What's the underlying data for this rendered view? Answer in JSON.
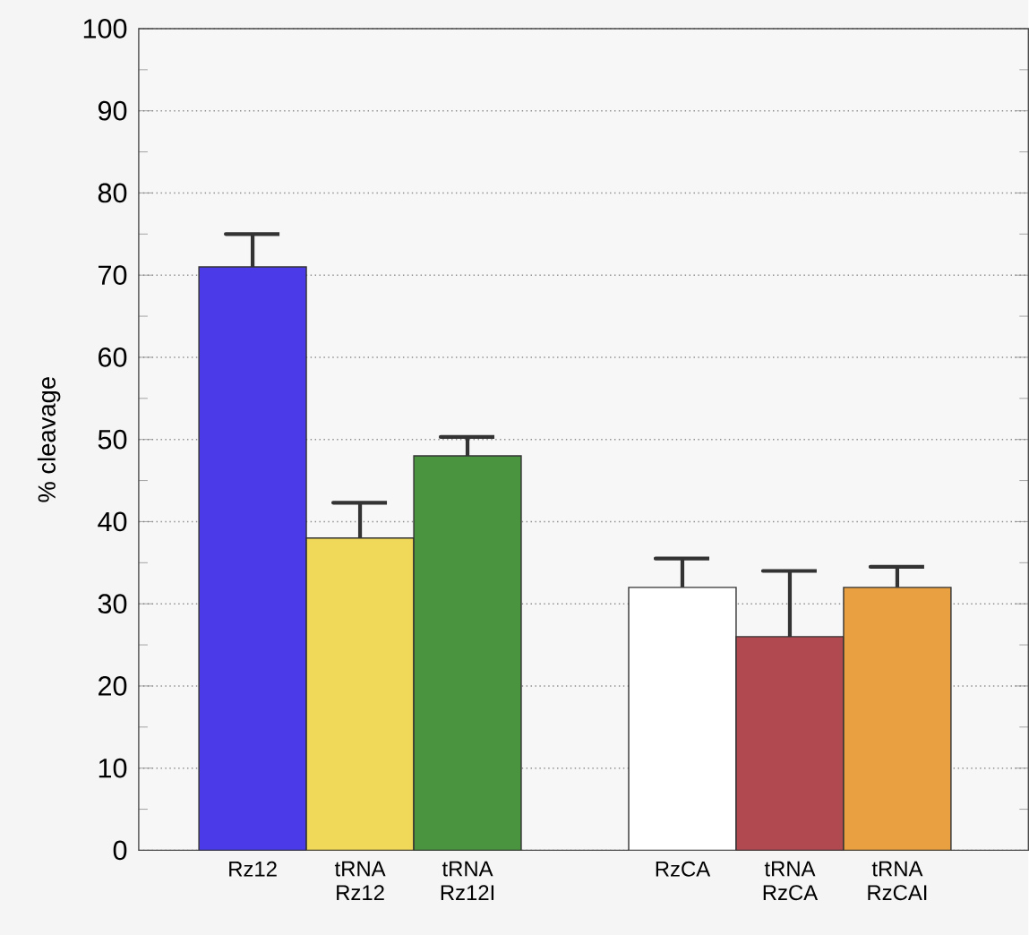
{
  "chart_data": {
    "type": "bar",
    "ylabel": "% cleavage",
    "categories": [
      "Rz12",
      "tRNA Rz12",
      "tRNA Rz12I",
      null,
      "RzCA",
      "tRNA RzCA",
      "tRNA RzCAI"
    ],
    "values": [
      71,
      38,
      48,
      null,
      32,
      26,
      32
    ],
    "errors": [
      [
        71,
        75
      ],
      [
        38,
        42.3
      ],
      [
        48,
        50.3
      ],
      null,
      [
        32,
        35.5
      ],
      [
        26,
        34
      ],
      [
        32,
        34.5
      ]
    ],
    "colors": [
      "#4a3ae8",
      "#f0d858",
      "#4a9440",
      "#ffffff",
      "#ffffff",
      "#b04a50",
      "#e8a040"
    ],
    "ylim": [
      0,
      100
    ],
    "yticks": [
      0,
      10,
      20,
      30,
      40,
      50,
      60,
      70,
      80,
      90,
      100
    ],
    "grid": "y"
  }
}
